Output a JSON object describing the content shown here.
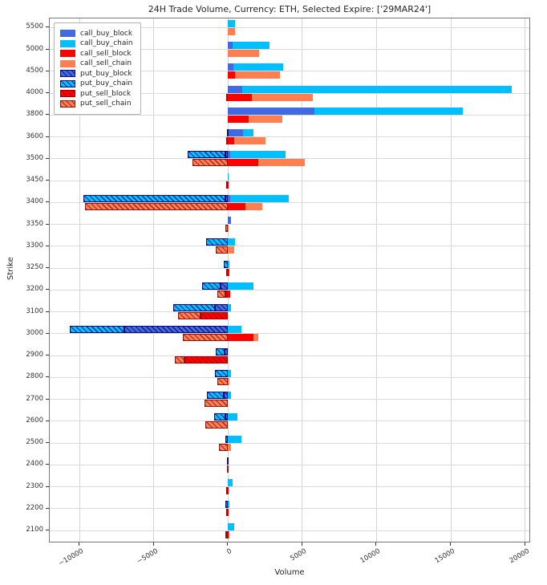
{
  "title": "24H Trade Volume, Currency: ETH, Selected Expire: ['29MAR24']",
  "axes": {
    "xlabel": "Volume",
    "ylabel": "Strike"
  },
  "chart_data": {
    "type": "bar",
    "orientation": "horizontal",
    "title": "24H Trade Volume, Currency: ETH, Selected Expire: ['29MAR24']",
    "xlabel": "Volume",
    "ylabel": "Strike",
    "xlim": [
      -12000,
      20400
    ],
    "xticks": [
      -10000,
      -5000,
      0,
      5000,
      10000,
      15000,
      20000
    ],
    "xtick_labels": [
      "−10000",
      "−5000",
      "0",
      "5000",
      "10000",
      "15000",
      "20000"
    ],
    "grid": true,
    "legend_position": "upper-left",
    "categories": [
      5500,
      5000,
      4500,
      4000,
      3800,
      3600,
      3500,
      3450,
      3400,
      3350,
      3300,
      3250,
      3200,
      3100,
      3000,
      2900,
      2800,
      2700,
      2600,
      2500,
      2400,
      2300,
      2200,
      2100
    ],
    "series": [
      {
        "name": "call_buy_block",
        "row": "buy",
        "color": "#4169E1",
        "hatch": "none",
        "values": [
          0,
          300,
          350,
          950,
          5800,
          1000,
          150,
          0,
          150,
          200,
          0,
          0,
          0,
          0,
          0,
          0,
          0,
          0,
          0,
          0,
          0,
          0,
          0,
          0
        ]
      },
      {
        "name": "call_buy_chain",
        "row": "buy",
        "color": "#00BFFF",
        "hatch": "none",
        "values": [
          450,
          2500,
          3350,
          18150,
          10000,
          700,
          3750,
          50,
          3950,
          0,
          500,
          100,
          1700,
          200,
          900,
          0,
          200,
          200,
          650,
          900,
          50,
          300,
          100,
          400
        ]
      },
      {
        "name": "call_sell_block",
        "row": "sell",
        "color": "#FF0000",
        "hatch": "none",
        "values": [
          0,
          0,
          450,
          1600,
          1400,
          400,
          2050,
          50,
          1200,
          0,
          0,
          100,
          150,
          0,
          1700,
          0,
          0,
          0,
          0,
          0,
          0,
          50,
          50,
          50
        ]
      },
      {
        "name": "call_sell_chain",
        "row": "sell",
        "color": "#FF7F50",
        "hatch": "none",
        "values": [
          500,
          2100,
          3050,
          4100,
          2250,
          2100,
          3100,
          0,
          1100,
          50,
          400,
          0,
          0,
          0,
          350,
          0,
          100,
          0,
          0,
          200,
          50,
          0,
          0,
          50
        ]
      },
      {
        "name": "put_buy_block",
        "row": "buy",
        "color": "#4169E1",
        "hatch": "darkblue",
        "values": [
          0,
          0,
          0,
          0,
          0,
          0,
          -200,
          0,
          -150,
          0,
          0,
          0,
          -500,
          -900,
          -7000,
          -250,
          0,
          -300,
          -150,
          -150,
          0,
          0,
          -200,
          0
        ]
      },
      {
        "name": "put_buy_chain",
        "row": "buy",
        "color": "#00BFFF",
        "hatch": "darkblue",
        "values": [
          0,
          0,
          0,
          0,
          0,
          -50,
          -2500,
          0,
          -9600,
          0,
          -1450,
          -300,
          -1250,
          -2800,
          -3650,
          -550,
          -900,
          -1100,
          -800,
          0,
          -50,
          0,
          0,
          0
        ]
      },
      {
        "name": "put_sell_block",
        "row": "sell",
        "color": "#FF0000",
        "hatch": "red",
        "values": [
          0,
          0,
          0,
          0,
          0,
          0,
          0,
          -100,
          0,
          0,
          0,
          0,
          -150,
          -1850,
          0,
          -2950,
          0,
          0,
          0,
          0,
          0,
          -100,
          -100,
          -100
        ]
      },
      {
        "name": "put_sell_chain",
        "row": "sell",
        "color": "#FF7F50",
        "hatch": "darkred",
        "values": [
          0,
          0,
          0,
          -100,
          0,
          -100,
          -2400,
          0,
          -9600,
          -200,
          -800,
          -100,
          -550,
          -1500,
          -3050,
          -600,
          -700,
          -1600,
          -1500,
          -600,
          -50,
          0,
          0,
          -100
        ]
      }
    ]
  }
}
